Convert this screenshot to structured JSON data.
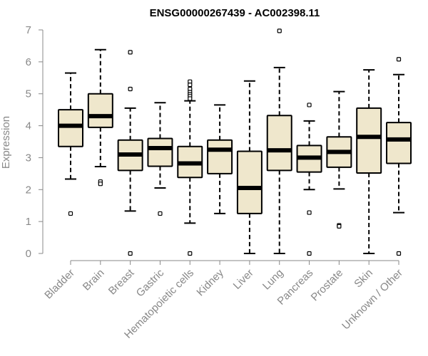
{
  "chart_data": {
    "type": "boxplot",
    "title": "ENSG00000267439 - AC002398.11",
    "ylabel": "Expression",
    "xlabel": "",
    "ylim": [
      0,
      7
    ],
    "yticks": [
      0,
      1,
      2,
      3,
      4,
      5,
      6,
      7
    ],
    "box_color": "#efe7cc",
    "categories": [
      "Bladder",
      "Brain",
      "Breast",
      "Gastric",
      "Hematopoietic cells",
      "Kidney",
      "Liver",
      "Lung",
      "Pancreas",
      "Prostate",
      "Skin",
      "Unknown / Other"
    ],
    "boxes": [
      {
        "name": "Bladder",
        "whisker_low": 2.33,
        "q1": 3.35,
        "median": 4.0,
        "q3": 4.5,
        "whisker_high": 5.65,
        "outliers": [
          1.25
        ]
      },
      {
        "name": "Brain",
        "whisker_low": 2.72,
        "q1": 3.95,
        "median": 4.3,
        "q3": 5.0,
        "whisker_high": 6.38,
        "outliers": [
          2.25,
          2.18
        ]
      },
      {
        "name": "Breast",
        "whisker_low": 1.33,
        "q1": 2.6,
        "median": 3.1,
        "q3": 3.55,
        "whisker_high": 4.55,
        "outliers": [
          6.3,
          5.15,
          0.0
        ]
      },
      {
        "name": "Gastric",
        "whisker_low": 2.05,
        "q1": 2.73,
        "median": 3.3,
        "q3": 3.6,
        "whisker_high": 4.72,
        "outliers": [
          1.25
        ]
      },
      {
        "name": "Hematopoietic cells",
        "whisker_low": 0.95,
        "q1": 2.38,
        "median": 2.82,
        "q3": 3.35,
        "whisker_high": 4.78,
        "outliers": [
          5.38,
          5.28,
          5.15,
          5.05,
          4.98,
          4.92,
          4.85,
          0.0
        ]
      },
      {
        "name": "Kidney",
        "whisker_low": 1.25,
        "q1": 2.5,
        "median": 3.25,
        "q3": 3.55,
        "whisker_high": 4.65,
        "outliers": []
      },
      {
        "name": "Liver",
        "whisker_low": 0.0,
        "q1": 1.25,
        "median": 2.05,
        "q3": 3.2,
        "whisker_high": 5.4,
        "outliers": []
      },
      {
        "name": "Lung",
        "whisker_low": 0.0,
        "q1": 2.6,
        "median": 3.23,
        "q3": 4.32,
        "whisker_high": 5.82,
        "outliers": [
          6.97
        ]
      },
      {
        "name": "Pancreas",
        "whisker_low": 2.0,
        "q1": 2.55,
        "median": 3.0,
        "q3": 3.38,
        "whisker_high": 4.15,
        "outliers": [
          4.65,
          1.28,
          0.0
        ]
      },
      {
        "name": "Prostate",
        "whisker_low": 2.02,
        "q1": 2.7,
        "median": 3.18,
        "q3": 3.65,
        "whisker_high": 5.07,
        "outliers": [
          0.88,
          0.85
        ]
      },
      {
        "name": "Skin",
        "whisker_low": 0.0,
        "q1": 2.52,
        "median": 3.65,
        "q3": 4.55,
        "whisker_high": 5.75,
        "outliers": []
      },
      {
        "name": "Unknown / Other",
        "whisker_low": 1.28,
        "q1": 2.82,
        "median": 3.57,
        "q3": 4.1,
        "whisker_high": 5.6,
        "outliers": [
          6.08,
          0.0
        ]
      }
    ]
  }
}
